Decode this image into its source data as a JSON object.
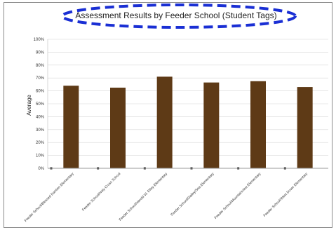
{
  "chart_data": {
    "type": "bar",
    "title": "Assessment Results by Feeder School (Student Tags)",
    "ylabel": "Average",
    "xlabel": "",
    "ylim": [
      0,
      100
    ],
    "yticks": [
      "0%",
      "10%",
      "20%",
      "30%",
      "40%",
      "50%",
      "60%",
      "70%",
      "80%",
      "90%",
      "100%"
    ],
    "categories": [
      "Feeder School/Blessed Damien Elementary",
      "Feeder School/Holy Cross School",
      "Feeder School/Harold W. Riley Elementary",
      "Feeder School/Galley/Sea Elementary",
      "Feeder School/Mountainview Elementary",
      "Feeder School/West Dover Elementary"
    ],
    "values": [
      64,
      62.5,
      71,
      66.5,
      67.5,
      63
    ],
    "grid": true,
    "colors": {
      "bar": "#5e3a16",
      "annotation": "#1a2fd4"
    }
  }
}
